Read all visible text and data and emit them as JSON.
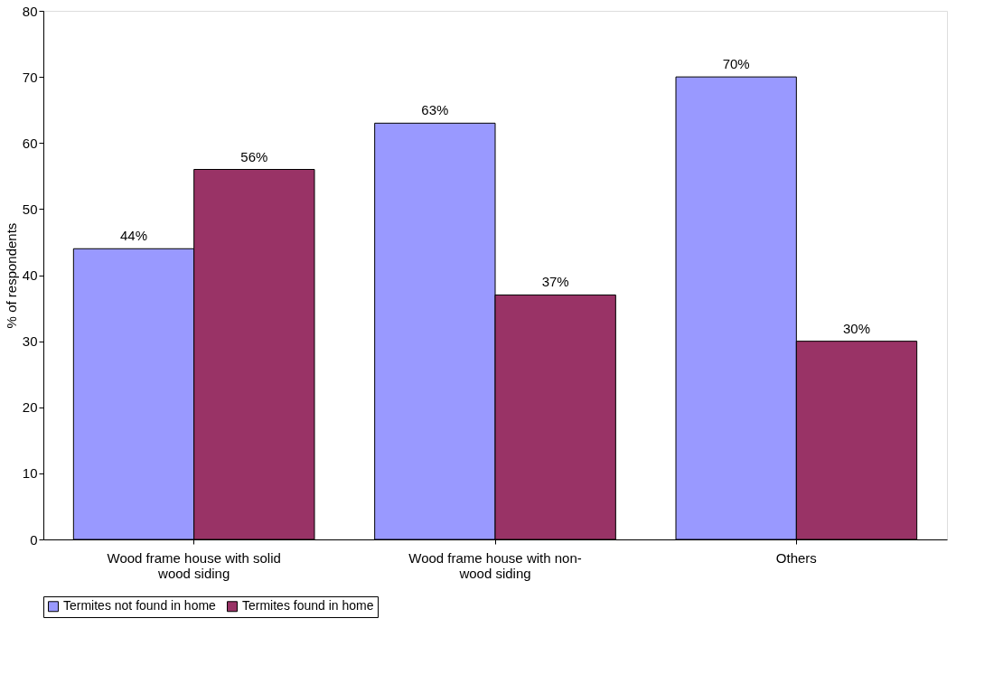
{
  "chart_data": {
    "type": "bar",
    "categories": [
      "Wood frame house with solid wood siding",
      "Wood frame house with non-wood siding",
      "Others"
    ],
    "series": [
      {
        "name": "Termites not found in home",
        "color": "#9999ff",
        "values": [
          44,
          63,
          70
        ],
        "value_labels": [
          "44%",
          "63%",
          "70%"
        ]
      },
      {
        "name": "Termites found in home",
        "color": "#993366",
        "values": [
          56,
          37,
          30
        ],
        "value_labels": [
          "56%",
          "37%",
          "30%"
        ]
      }
    ],
    "ylabel": "% of respondents",
    "ylim": [
      0,
      80
    ],
    "yticks": [
      0,
      10,
      20,
      30,
      40,
      50,
      60,
      70,
      80
    ],
    "grid": false,
    "legend": "bottom"
  }
}
